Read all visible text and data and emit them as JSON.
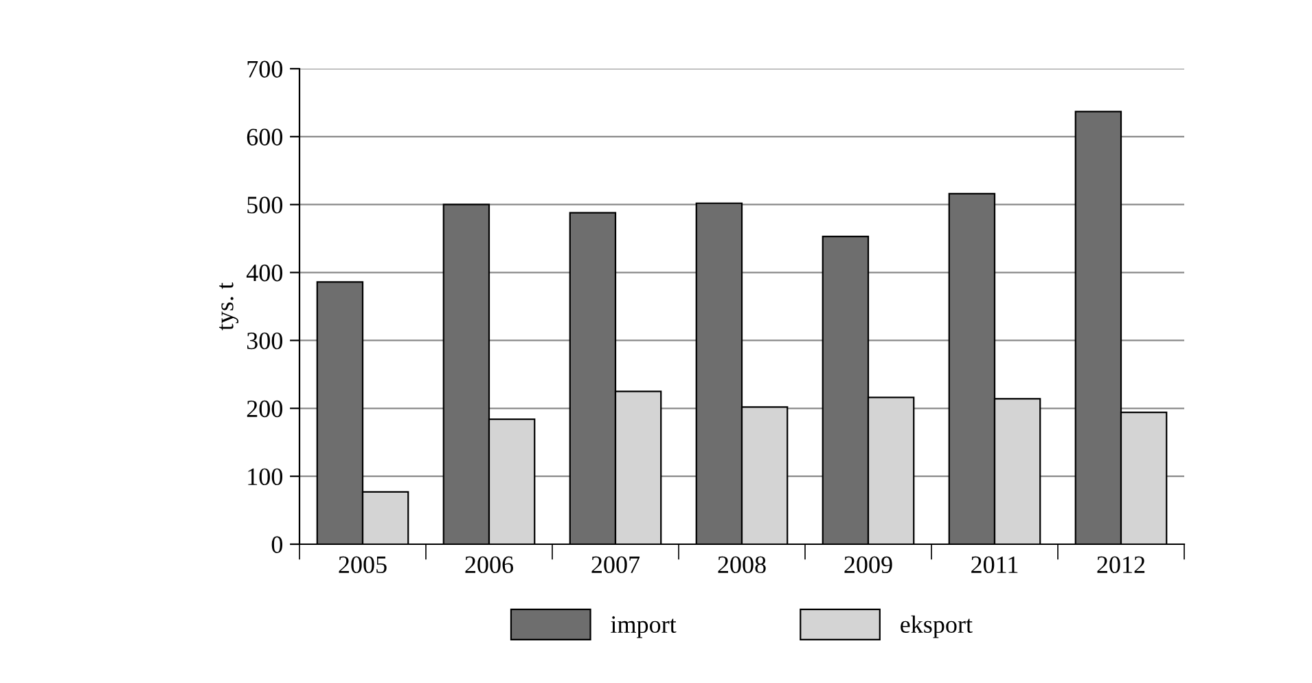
{
  "chart_data": {
    "type": "bar",
    "ylabel": "tys. t",
    "categories": [
      "2005",
      "2006",
      "2007",
      "2008",
      "2009",
      "2011",
      "2012"
    ],
    "series": [
      {
        "name": "import",
        "color": "#6e6e6e",
        "values": [
          386,
          500,
          488,
          502,
          453,
          516,
          637
        ]
      },
      {
        "name": "eksport",
        "color": "#d4d4d4",
        "values": [
          77,
          184,
          225,
          202,
          216,
          214,
          194
        ]
      }
    ],
    "ylim": [
      0,
      700
    ],
    "yticks": [
      0,
      100,
      200,
      300,
      400,
      500,
      600,
      700
    ],
    "grid": "y",
    "legend": "bottom"
  }
}
